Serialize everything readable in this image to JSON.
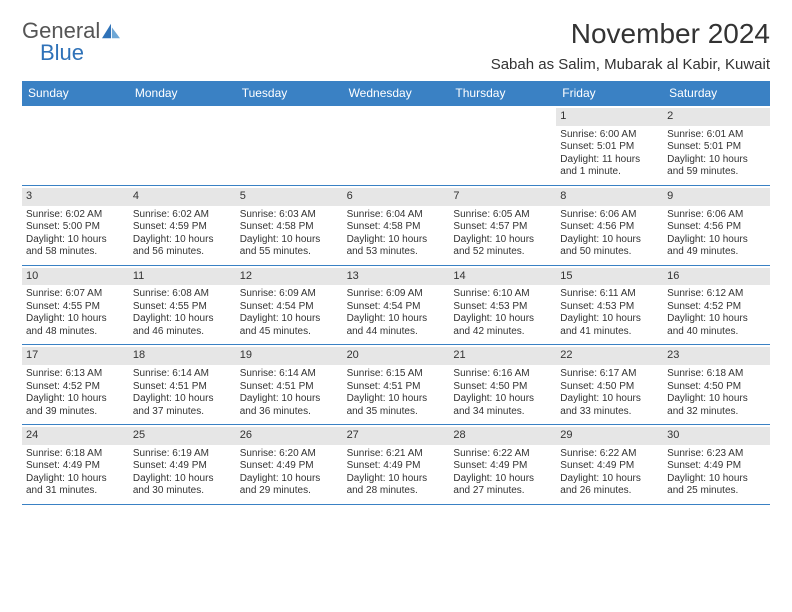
{
  "logo": {
    "gray": "General",
    "blue": "Blue"
  },
  "title": "November 2024",
  "location": "Sabah as Salim, Mubarak al Kabir, Kuwait",
  "colors": {
    "header_bg": "#3a81c4",
    "header_text": "#ffffff",
    "daynum_bg": "#e6e6e6",
    "border": "#3a81c4",
    "logo_gray": "#555555",
    "logo_blue": "#2f72b8",
    "text": "#333333",
    "background": "#ffffff"
  },
  "day_names": [
    "Sunday",
    "Monday",
    "Tuesday",
    "Wednesday",
    "Thursday",
    "Friday",
    "Saturday"
  ],
  "weeks": [
    [
      {
        "n": "",
        "sr": "",
        "ss": "",
        "dl": ""
      },
      {
        "n": "",
        "sr": "",
        "ss": "",
        "dl": ""
      },
      {
        "n": "",
        "sr": "",
        "ss": "",
        "dl": ""
      },
      {
        "n": "",
        "sr": "",
        "ss": "",
        "dl": ""
      },
      {
        "n": "",
        "sr": "",
        "ss": "",
        "dl": ""
      },
      {
        "n": "1",
        "sr": "Sunrise: 6:00 AM",
        "ss": "Sunset: 5:01 PM",
        "dl": "Daylight: 11 hours and 1 minute."
      },
      {
        "n": "2",
        "sr": "Sunrise: 6:01 AM",
        "ss": "Sunset: 5:01 PM",
        "dl": "Daylight: 10 hours and 59 minutes."
      }
    ],
    [
      {
        "n": "3",
        "sr": "Sunrise: 6:02 AM",
        "ss": "Sunset: 5:00 PM",
        "dl": "Daylight: 10 hours and 58 minutes."
      },
      {
        "n": "4",
        "sr": "Sunrise: 6:02 AM",
        "ss": "Sunset: 4:59 PM",
        "dl": "Daylight: 10 hours and 56 minutes."
      },
      {
        "n": "5",
        "sr": "Sunrise: 6:03 AM",
        "ss": "Sunset: 4:58 PM",
        "dl": "Daylight: 10 hours and 55 minutes."
      },
      {
        "n": "6",
        "sr": "Sunrise: 6:04 AM",
        "ss": "Sunset: 4:58 PM",
        "dl": "Daylight: 10 hours and 53 minutes."
      },
      {
        "n": "7",
        "sr": "Sunrise: 6:05 AM",
        "ss": "Sunset: 4:57 PM",
        "dl": "Daylight: 10 hours and 52 minutes."
      },
      {
        "n": "8",
        "sr": "Sunrise: 6:06 AM",
        "ss": "Sunset: 4:56 PM",
        "dl": "Daylight: 10 hours and 50 minutes."
      },
      {
        "n": "9",
        "sr": "Sunrise: 6:06 AM",
        "ss": "Sunset: 4:56 PM",
        "dl": "Daylight: 10 hours and 49 minutes."
      }
    ],
    [
      {
        "n": "10",
        "sr": "Sunrise: 6:07 AM",
        "ss": "Sunset: 4:55 PM",
        "dl": "Daylight: 10 hours and 48 minutes."
      },
      {
        "n": "11",
        "sr": "Sunrise: 6:08 AM",
        "ss": "Sunset: 4:55 PM",
        "dl": "Daylight: 10 hours and 46 minutes."
      },
      {
        "n": "12",
        "sr": "Sunrise: 6:09 AM",
        "ss": "Sunset: 4:54 PM",
        "dl": "Daylight: 10 hours and 45 minutes."
      },
      {
        "n": "13",
        "sr": "Sunrise: 6:09 AM",
        "ss": "Sunset: 4:54 PM",
        "dl": "Daylight: 10 hours and 44 minutes."
      },
      {
        "n": "14",
        "sr": "Sunrise: 6:10 AM",
        "ss": "Sunset: 4:53 PM",
        "dl": "Daylight: 10 hours and 42 minutes."
      },
      {
        "n": "15",
        "sr": "Sunrise: 6:11 AM",
        "ss": "Sunset: 4:53 PM",
        "dl": "Daylight: 10 hours and 41 minutes."
      },
      {
        "n": "16",
        "sr": "Sunrise: 6:12 AM",
        "ss": "Sunset: 4:52 PM",
        "dl": "Daylight: 10 hours and 40 minutes."
      }
    ],
    [
      {
        "n": "17",
        "sr": "Sunrise: 6:13 AM",
        "ss": "Sunset: 4:52 PM",
        "dl": "Daylight: 10 hours and 39 minutes."
      },
      {
        "n": "18",
        "sr": "Sunrise: 6:14 AM",
        "ss": "Sunset: 4:51 PM",
        "dl": "Daylight: 10 hours and 37 minutes."
      },
      {
        "n": "19",
        "sr": "Sunrise: 6:14 AM",
        "ss": "Sunset: 4:51 PM",
        "dl": "Daylight: 10 hours and 36 minutes."
      },
      {
        "n": "20",
        "sr": "Sunrise: 6:15 AM",
        "ss": "Sunset: 4:51 PM",
        "dl": "Daylight: 10 hours and 35 minutes."
      },
      {
        "n": "21",
        "sr": "Sunrise: 6:16 AM",
        "ss": "Sunset: 4:50 PM",
        "dl": "Daylight: 10 hours and 34 minutes."
      },
      {
        "n": "22",
        "sr": "Sunrise: 6:17 AM",
        "ss": "Sunset: 4:50 PM",
        "dl": "Daylight: 10 hours and 33 minutes."
      },
      {
        "n": "23",
        "sr": "Sunrise: 6:18 AM",
        "ss": "Sunset: 4:50 PM",
        "dl": "Daylight: 10 hours and 32 minutes."
      }
    ],
    [
      {
        "n": "24",
        "sr": "Sunrise: 6:18 AM",
        "ss": "Sunset: 4:49 PM",
        "dl": "Daylight: 10 hours and 31 minutes."
      },
      {
        "n": "25",
        "sr": "Sunrise: 6:19 AM",
        "ss": "Sunset: 4:49 PM",
        "dl": "Daylight: 10 hours and 30 minutes."
      },
      {
        "n": "26",
        "sr": "Sunrise: 6:20 AM",
        "ss": "Sunset: 4:49 PM",
        "dl": "Daylight: 10 hours and 29 minutes."
      },
      {
        "n": "27",
        "sr": "Sunrise: 6:21 AM",
        "ss": "Sunset: 4:49 PM",
        "dl": "Daylight: 10 hours and 28 minutes."
      },
      {
        "n": "28",
        "sr": "Sunrise: 6:22 AM",
        "ss": "Sunset: 4:49 PM",
        "dl": "Daylight: 10 hours and 27 minutes."
      },
      {
        "n": "29",
        "sr": "Sunrise: 6:22 AM",
        "ss": "Sunset: 4:49 PM",
        "dl": "Daylight: 10 hours and 26 minutes."
      },
      {
        "n": "30",
        "sr": "Sunrise: 6:23 AM",
        "ss": "Sunset: 4:49 PM",
        "dl": "Daylight: 10 hours and 25 minutes."
      }
    ]
  ]
}
